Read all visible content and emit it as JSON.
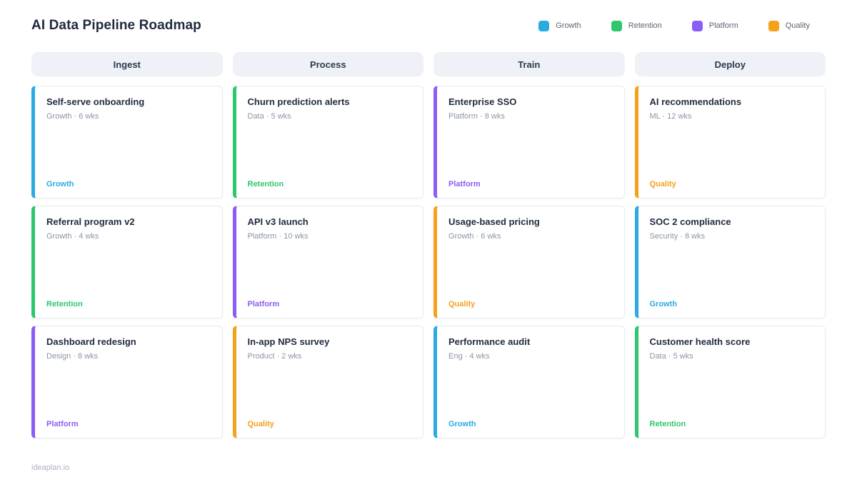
{
  "page": {
    "title": "AI Data Pipeline Roadmap",
    "footer": "ideaplan.io"
  },
  "colors": {
    "growth": "#29abe2",
    "retention": "#2dc76d",
    "platform": "#8b5cf6",
    "quality": "#f5a11c"
  },
  "legend": [
    {
      "label": "Growth",
      "color_key": "growth"
    },
    {
      "label": "Retention",
      "color_key": "retention"
    },
    {
      "label": "Platform",
      "color_key": "platform"
    },
    {
      "label": "Quality",
      "color_key": "quality"
    }
  ],
  "columns": [
    {
      "title": "Ingest",
      "cards": [
        {
          "title": "Self-serve onboarding",
          "meta": "Growth · 6 wks",
          "tag": "Growth",
          "tag_key": "growth"
        },
        {
          "title": "Referral program v2",
          "meta": "Growth · 4 wks",
          "tag": "Retention",
          "tag_key": "retention"
        },
        {
          "title": "Dashboard redesign",
          "meta": "Design · 8 wks",
          "tag": "Platform",
          "tag_key": "platform"
        }
      ]
    },
    {
      "title": "Process",
      "cards": [
        {
          "title": "Churn prediction alerts",
          "meta": "Data · 5 wks",
          "tag": "Retention",
          "tag_key": "retention"
        },
        {
          "title": "API v3 launch",
          "meta": "Platform · 10 wks",
          "tag": "Platform",
          "tag_key": "platform"
        },
        {
          "title": "In-app NPS survey",
          "meta": "Product · 2 wks",
          "tag": "Quality",
          "tag_key": "quality"
        }
      ]
    },
    {
      "title": "Train",
      "cards": [
        {
          "title": "Enterprise SSO",
          "meta": "Platform · 8 wks",
          "tag": "Platform",
          "tag_key": "platform"
        },
        {
          "title": "Usage-based pricing",
          "meta": "Growth · 6 wks",
          "tag": "Quality",
          "tag_key": "quality"
        },
        {
          "title": "Performance audit",
          "meta": "Eng · 4 wks",
          "tag": "Growth",
          "tag_key": "growth"
        }
      ]
    },
    {
      "title": "Deploy",
      "cards": [
        {
          "title": "AI recommendations",
          "meta": "ML · 12 wks",
          "tag": "Quality",
          "tag_key": "quality"
        },
        {
          "title": "SOC 2 compliance",
          "meta": "Security · 8 wks",
          "tag": "Growth",
          "tag_key": "growth"
        },
        {
          "title": "Customer health score",
          "meta": "Data · 5 wks",
          "tag": "Retention",
          "tag_key": "retention"
        }
      ]
    }
  ]
}
